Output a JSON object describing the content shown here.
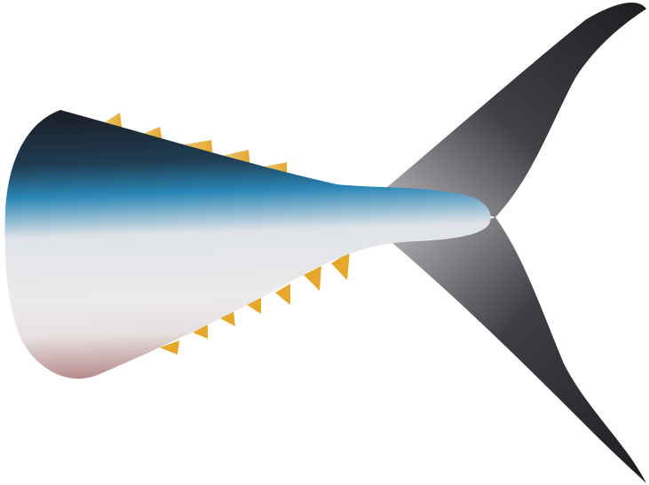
{
  "illustration": {
    "subject": "fish-tail",
    "colors": {
      "background": "#ffffff",
      "back_dark": "#1b2129",
      "back_mid": "#1f3c52",
      "lateral_blue": "#2a86b5",
      "belly_light": "#dfe3e8",
      "belly_white": "#eceaec",
      "belly_pink": "#b27f7f",
      "finlet_yellow": "#e6a82a",
      "finlet_pale": "#e8c87e",
      "fin_dark": "#1d1e22",
      "fin_light": "#b9b9bc"
    }
  }
}
